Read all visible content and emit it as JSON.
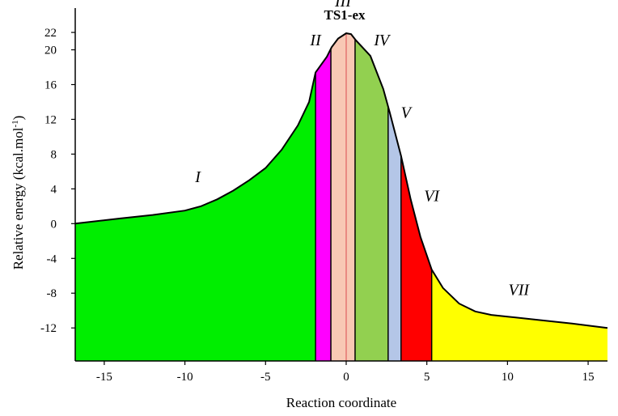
{
  "chart_data": {
    "type": "area",
    "title": "TS1-ex",
    "xlabel": "Reaction coordinate",
    "ylabel": "Relative energy (kcal.mol",
    "ylabel_superscript": "-1",
    "ylabel_suffix": ")",
    "xlim": [
      -16.8,
      16.2
    ],
    "ylim": [
      -15.8,
      24.8
    ],
    "x_ticks": [
      -15,
      -10,
      -5,
      0,
      5,
      10,
      15
    ],
    "y_ticks": [
      22,
      20,
      16,
      12,
      8,
      4,
      0,
      -4,
      -8,
      -12
    ],
    "baseline": -15.8,
    "grid": false,
    "curve": [
      [
        -16.8,
        0.0
      ],
      [
        -14,
        0.6
      ],
      [
        -12,
        1.0
      ],
      [
        -10,
        1.5
      ],
      [
        -9,
        2.0
      ],
      [
        -8,
        2.8
      ],
      [
        -7,
        3.8
      ],
      [
        -6,
        5.0
      ],
      [
        -5,
        6.4
      ],
      [
        -4,
        8.5
      ],
      [
        -3,
        11.3
      ],
      [
        -2.3,
        14.0
      ],
      [
        -1.9,
        17.4
      ],
      [
        -1.2,
        19.2
      ],
      [
        -0.9,
        20.3
      ],
      [
        -0.5,
        21.3
      ],
      [
        0,
        21.9
      ],
      [
        0.3,
        21.8
      ],
      [
        0.6,
        21.1
      ],
      [
        1.5,
        19.3
      ],
      [
        2.3,
        15.5
      ],
      [
        2.7,
        12.8
      ],
      [
        3.4,
        7.8
      ],
      [
        4.0,
        2.8
      ],
      [
        4.6,
        -1.5
      ],
      [
        5.3,
        -5.3
      ],
      [
        6.0,
        -7.4
      ],
      [
        7.0,
        -9.2
      ],
      [
        8.0,
        -10.1
      ],
      [
        9.0,
        -10.5
      ],
      [
        10.0,
        -10.7
      ],
      [
        12.0,
        -11.1
      ],
      [
        14.0,
        -11.5
      ],
      [
        16.2,
        -12.0
      ]
    ],
    "regions": [
      {
        "name": "I",
        "from": -16.8,
        "to": -1.9,
        "color": "#00ee00",
        "label_at": [
          -9.2,
          4.8
        ]
      },
      {
        "name": "II",
        "from": -1.9,
        "to": -0.95,
        "color": "#ff00ff",
        "label_at": [
          -1.9,
          20.5
        ]
      },
      {
        "name": "III",
        "from": -0.95,
        "to": 0.55,
        "color": "#f8c8b4",
        "label_at": [
          -0.2,
          25.0
        ]
      },
      {
        "name": "IV",
        "from": 0.55,
        "to": 2.6,
        "color": "#92d050",
        "label_at": [
          2.2,
          20.5
        ]
      },
      {
        "name": "V",
        "from": 2.6,
        "to": 3.4,
        "color": "#b4c6e7",
        "label_at": [
          3.7,
          12.2
        ]
      },
      {
        "name": "VI",
        "from": 3.4,
        "to": 5.3,
        "color": "#ff0000",
        "label_at": [
          5.3,
          2.6
        ]
      },
      {
        "name": "VII",
        "from": 5.3,
        "to": 16.2,
        "color": "#ffff00",
        "label_at": [
          10.7,
          -8.2
        ]
      }
    ],
    "internal_lines": [
      {
        "x": 0.0,
        "color": "#e06060"
      }
    ]
  }
}
